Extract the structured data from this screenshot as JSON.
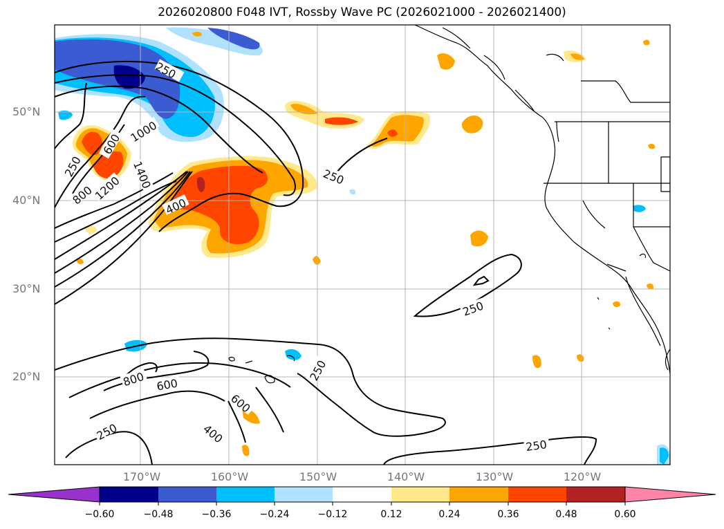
{
  "title": "2026020800 F048 IVT, Rossby Wave PC (2026021000 - 2026021400)",
  "lat_labels": [
    "50°N",
    "40°N",
    "30°N",
    "20°N"
  ],
  "lon_labels": [
    "170°W",
    "160°W",
    "150°W",
    "140°W",
    "130°W",
    "120°W"
  ],
  "colorbar": {
    "ticks": [
      "−0.60",
      "−0.48",
      "−0.36",
      "−0.24",
      "−0.12",
      "0.12",
      "0.24",
      "0.36",
      "0.48",
      "0.60"
    ],
    "colors": [
      "#9932cc",
      "#00008b",
      "#3a5bd1",
      "#00bfff",
      "#b0e2ff",
      "#ffffff",
      "#ffe98a",
      "#ffa500",
      "#ff4500",
      "#b22222",
      "#ff85a8"
    ]
  },
  "contour_labels": [
    {
      "text": "250"
    },
    {
      "text": "600"
    },
    {
      "text": "1000"
    },
    {
      "text": "250"
    },
    {
      "text": "1400"
    },
    {
      "text": "800"
    },
    {
      "text": "1200"
    },
    {
      "text": "400"
    },
    {
      "text": "250"
    },
    {
      "text": "250"
    },
    {
      "text": "800"
    },
    {
      "text": "600"
    },
    {
      "text": "250"
    },
    {
      "text": "600"
    },
    {
      "text": "250"
    },
    {
      "text": "400"
    },
    {
      "text": "250"
    }
  ]
}
